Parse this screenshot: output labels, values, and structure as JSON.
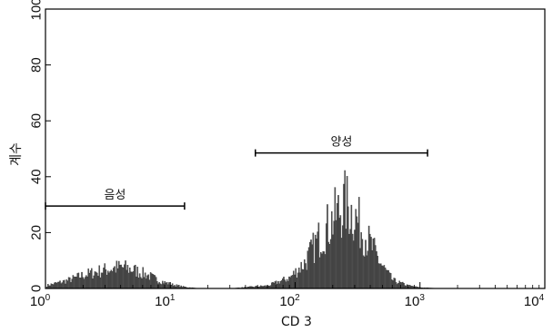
{
  "chart_data": {
    "type": "histogram",
    "xlabel": "CD 3",
    "ylabel": "계수",
    "x_scale": "log",
    "xlim": [
      1,
      10000
    ],
    "ylim": [
      0,
      100
    ],
    "x_ticks": [
      {
        "value": 1,
        "base": "10",
        "exp": "0"
      },
      {
        "value": 10,
        "base": "10",
        "exp": "1"
      },
      {
        "value": 100,
        "base": "10",
        "exp": "2"
      },
      {
        "value": 1000,
        "base": "10",
        "exp": "3"
      },
      {
        "value": 10000,
        "base": "10",
        "exp": "4"
      }
    ],
    "y_ticks": [
      "0",
      "20",
      "40",
      "60",
      "80",
      "100"
    ],
    "gates": [
      {
        "label": "음성",
        "x_start": 1,
        "x_end": 13,
        "y": 29.5
      },
      {
        "label": "양성",
        "x_start": 48,
        "x_end": 1150,
        "y": 48.5
      }
    ],
    "series": [
      {
        "x": [
          1.0,
          1.5,
          2.0,
          3.0,
          4.0,
          5.0,
          6.5,
          8.0,
          10.0,
          13.0,
          17.0,
          30.0,
          60.0,
          90.0,
          120.0,
          150.0,
          200.0,
          250.0,
          300.0,
          400.0,
          500.0,
          600.0,
          800.0,
          1000.0,
          1500.0,
          10000.0
        ],
        "values": [
          1,
          3,
          5,
          7,
          8,
          7,
          5,
          3,
          1.5,
          0.5,
          0,
          0,
          1,
          4,
          10,
          18,
          26,
          32,
          27,
          16,
          8,
          3,
          1,
          0.3,
          0,
          0
        ]
      }
    ]
  }
}
